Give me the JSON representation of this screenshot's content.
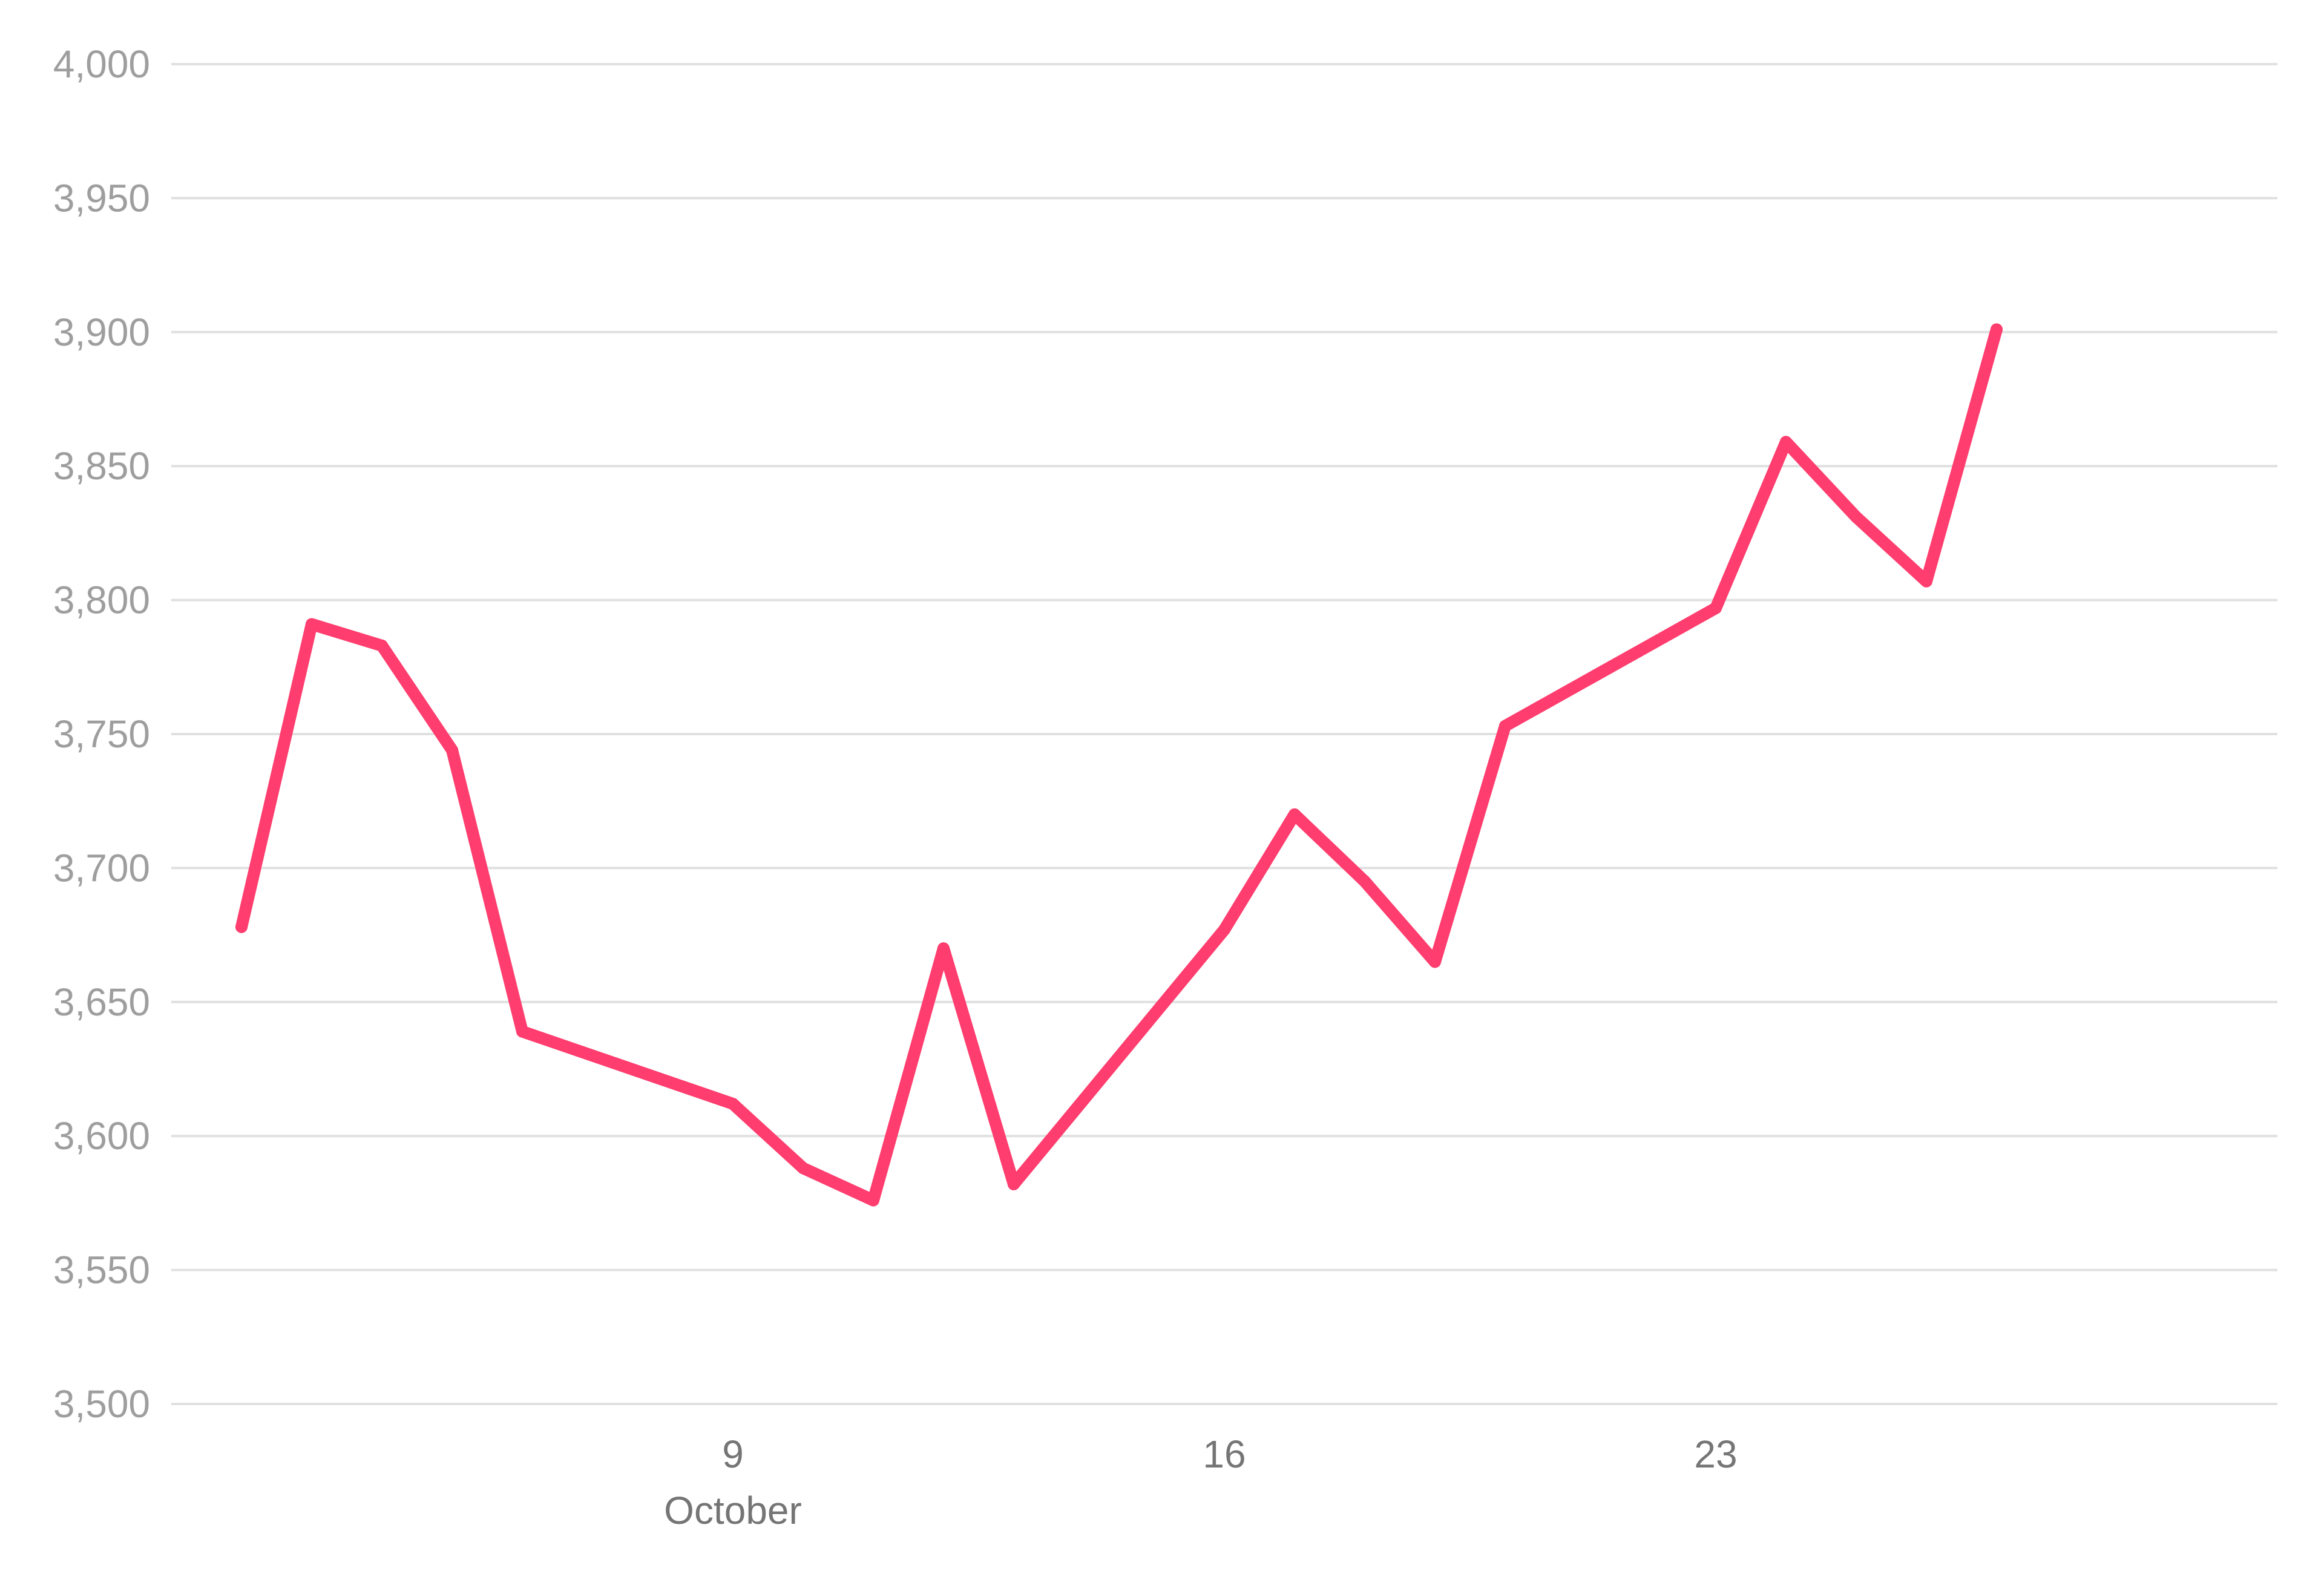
{
  "chart_data": {
    "type": "line",
    "title": "",
    "xlabel": "",
    "ylabel": "",
    "ylim": [
      3500,
      4000
    ],
    "yticks": [
      3500,
      3550,
      3600,
      3650,
      3700,
      3750,
      3800,
      3850,
      3900,
      3950,
      4000
    ],
    "ytick_labels": [
      "3,500",
      "3,550",
      "3,600",
      "3,650",
      "3,700",
      "3,750",
      "3,800",
      "3,850",
      "3,900",
      "3,950",
      "4,000"
    ],
    "xlim": [
      "2023-10-01",
      "2023-10-31"
    ],
    "xticks": [
      {
        "x": "2023-10-09",
        "label": "9",
        "sublabel": "October"
      },
      {
        "x": "2023-10-16",
        "label": "16",
        "sublabel": ""
      },
      {
        "x": "2023-10-23",
        "label": "23",
        "sublabel": ""
      }
    ],
    "grid": true,
    "legend": "none",
    "colors": {
      "line": "#ff3d6e",
      "grid": "#e0e0e0",
      "tick_text": "#9e9e9e",
      "month_text": "#757575"
    },
    "series": [
      {
        "values": [
          {
            "x": "2023-10-02",
            "y": 3678
          },
          {
            "x": "2023-10-03",
            "y": 3791
          },
          {
            "x": "2023-10-04",
            "y": 3783
          },
          {
            "x": "2023-10-05",
            "y": 3744
          },
          {
            "x": "2023-10-06",
            "y": 3639
          },
          {
            "x": "2023-10-09",
            "y": 3612
          },
          {
            "x": "2023-10-10",
            "y": 3588
          },
          {
            "x": "2023-10-11",
            "y": 3576
          },
          {
            "x": "2023-10-12",
            "y": 3670
          },
          {
            "x": "2023-10-13",
            "y": 3582
          },
          {
            "x": "2023-10-16",
            "y": 3677
          },
          {
            "x": "2023-10-17",
            "y": 3720
          },
          {
            "x": "2023-10-18",
            "y": 3695
          },
          {
            "x": "2023-10-19",
            "y": 3665
          },
          {
            "x": "2023-10-20",
            "y": 3753
          },
          {
            "x": "2023-10-23",
            "y": 3797
          },
          {
            "x": "2023-10-24",
            "y": 3859
          },
          {
            "x": "2023-10-25",
            "y": 3831
          },
          {
            "x": "2023-10-26",
            "y": 3807
          },
          {
            "x": "2023-10-27",
            "y": 3901
          }
        ]
      }
    ]
  }
}
